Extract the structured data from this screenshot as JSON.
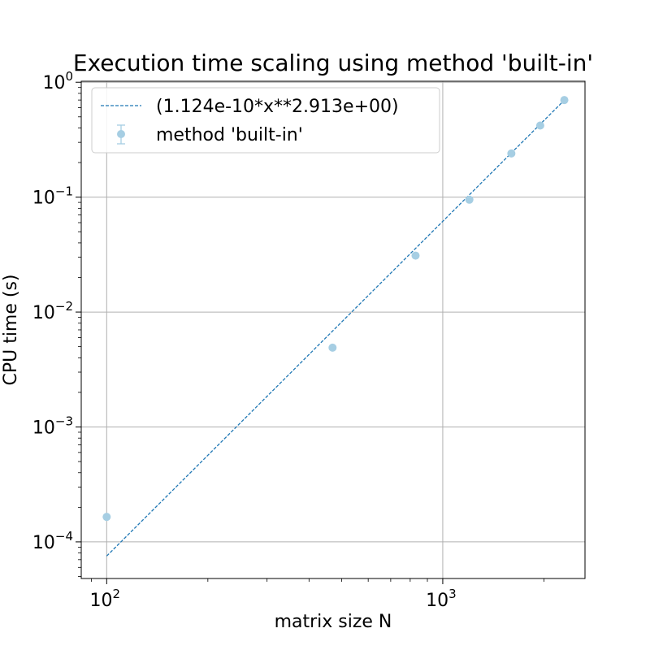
{
  "chart_data": {
    "type": "scatter",
    "title": "Execution time scaling using method 'built-in'",
    "xlabel": "matrix size N",
    "ylabel": "CPU time (s)",
    "xscale": "log",
    "yscale": "log",
    "xlim": [
      84,
      2650
    ],
    "ylim": [
      4.8e-05,
      1.02
    ],
    "grid": true,
    "legend_position": "top-left",
    "x_ticks": [
      {
        "value": 100,
        "base": "10",
        "exp": "2"
      },
      {
        "value": 1000,
        "base": "10",
        "exp": "3"
      }
    ],
    "y_ticks": [
      {
        "value": 0.0001,
        "base": "10",
        "exp": "−4"
      },
      {
        "value": 0.001,
        "base": "10",
        "exp": "−3"
      },
      {
        "value": 0.01,
        "base": "10",
        "exp": "−2"
      },
      {
        "value": 0.1,
        "base": "10",
        "exp": "−1"
      },
      {
        "value": 1,
        "base": "10",
        "exp": "0"
      }
    ],
    "series": [
      {
        "name": "method 'built-in'",
        "kind": "errorbar-points",
        "color": "#a6cee3",
        "x": [
          100,
          470,
          830,
          1200,
          1600,
          1950,
          2300
        ],
        "y": [
          0.000165,
          0.0049,
          0.031,
          0.095,
          0.24,
          0.42,
          0.7
        ]
      },
      {
        "name": "(1.124e-10*x**2.913e+00)",
        "kind": "fit-line",
        "color": "#1f77b4",
        "coef": 1.124e-10,
        "exponent": 2.913,
        "x_range": [
          100,
          2300
        ]
      }
    ]
  }
}
